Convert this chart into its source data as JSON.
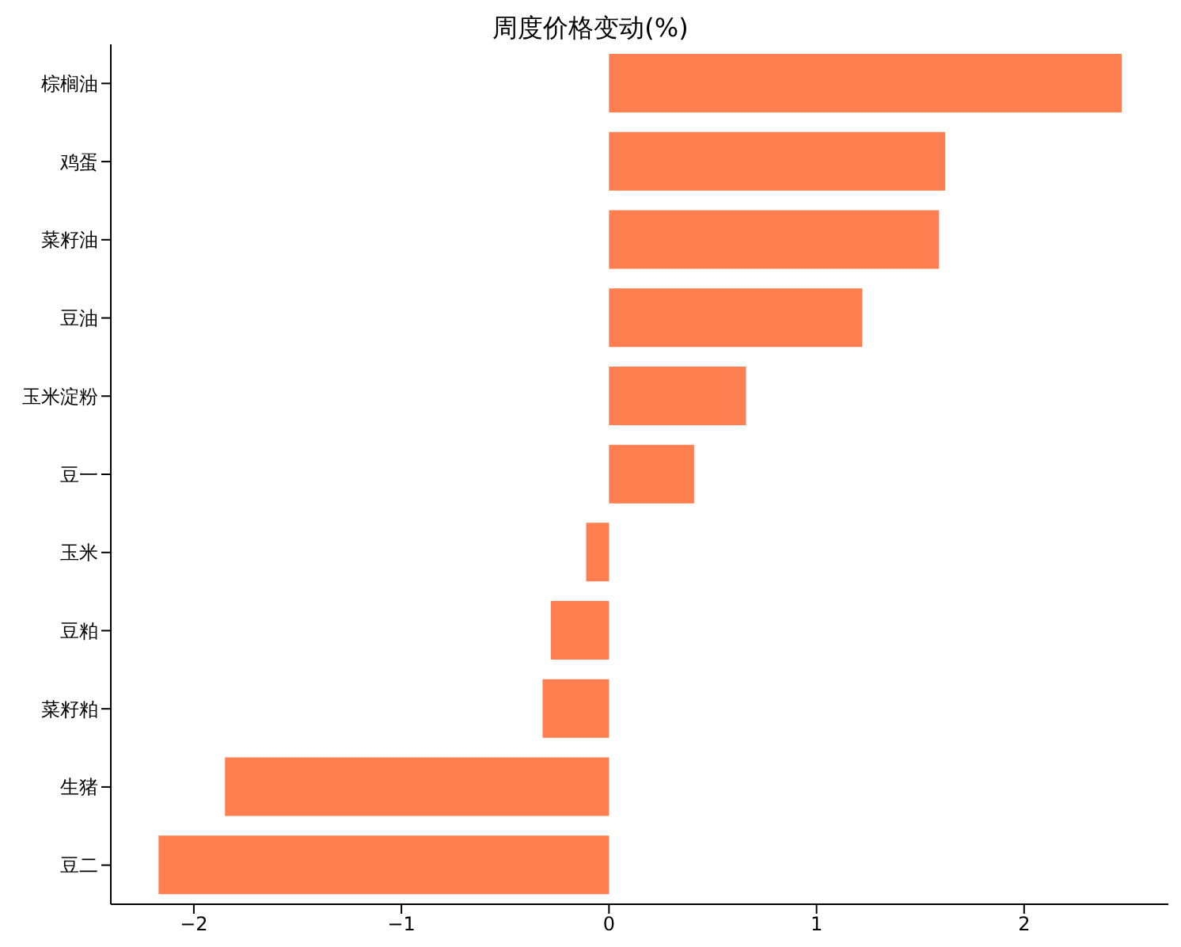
{
  "chart_data": {
    "type": "bar",
    "orientation": "horizontal",
    "title": "周度价格变动(%)",
    "categories": [
      "棕榈油",
      "鸡蛋",
      "菜籽油",
      "豆油",
      "玉米淀粉",
      "豆一",
      "玉米",
      "豆粕",
      "菜籽粕",
      "生猪",
      "豆二"
    ],
    "values": [
      2.47,
      1.62,
      1.59,
      1.22,
      0.66,
      0.41,
      -0.11,
      -0.28,
      -0.32,
      -1.85,
      -2.17
    ],
    "color": "#ff7f50",
    "xlim": [
      -2.4,
      2.71
    ],
    "xticks": [
      {
        "value": -2,
        "label": "−2"
      },
      {
        "value": -1,
        "label": "−1"
      },
      0,
      1,
      2
    ],
    "grid": false
  }
}
